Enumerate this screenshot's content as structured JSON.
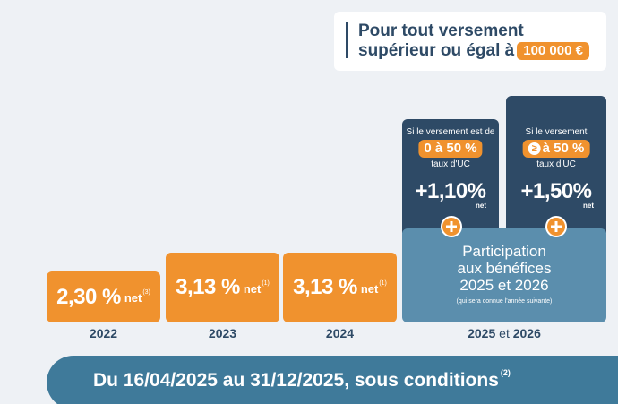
{
  "callout": {
    "line1": "Pour tout versement",
    "line2": "supérieur ou égal à",
    "amount": "100 000 €"
  },
  "chart_data": {
    "type": "bar",
    "categories": [
      "2022",
      "2023",
      "2024"
    ],
    "values": [
      2.3,
      3.13,
      3.13
    ],
    "value_labels": [
      "2,30 %",
      "3,13 %",
      "3,13 %"
    ],
    "net_label": "net",
    "footnotes": [
      "(3)",
      "(1)",
      "(1)"
    ]
  },
  "future": {
    "year": "2025",
    "year_et": "et",
    "year2": "2026",
    "option_a": {
      "line1": "Si le versement est de",
      "range": "0 à 50 %",
      "line2": "taux d'UC",
      "rate": "+1,10%",
      "net": "net"
    },
    "option_b": {
      "line1": "Si le versement",
      "gte_symbol": "≥",
      "range": "à 50 %",
      "line2": "taux d'UC",
      "rate": "+1,50%",
      "net": "net"
    },
    "participation": {
      "line1": "Participation",
      "line2": "aux bénéfices",
      "line3": "2025 et 2026",
      "note": "(qui sera connue l'année suivante)"
    }
  },
  "banner": {
    "text": "Du 16/04/2025 au 31/12/2025, sous conditions",
    "footnote": "(2)"
  },
  "colors": {
    "orange": "#f0922e",
    "navy": "#2e4a66",
    "teal": "#5b8ead",
    "band": "#3f7a9a"
  }
}
